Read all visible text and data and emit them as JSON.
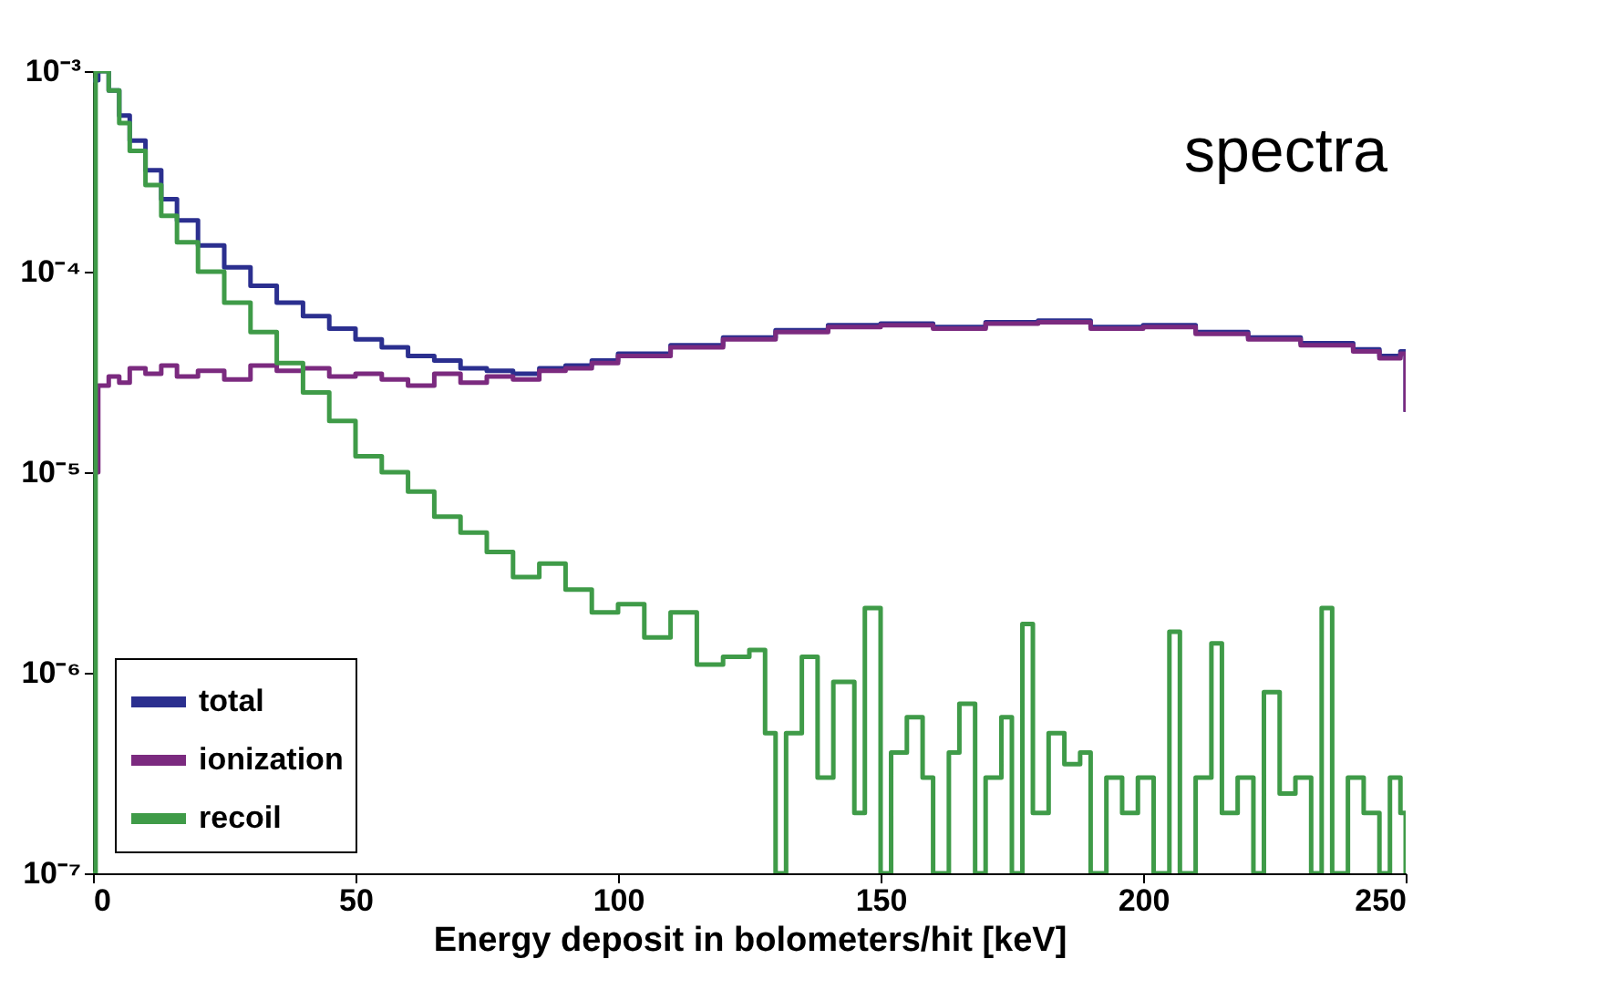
{
  "chart_data": {
    "type": "step",
    "xlabel": "Energy deposit in bolometers/hit [keV]",
    "annotations": [
      "spectra"
    ],
    "log": "y",
    "xlim": [
      0,
      250
    ],
    "xticks": [
      0,
      50,
      100,
      150,
      200,
      250
    ],
    "ylim": [
      1e-07,
      0.001
    ],
    "yticks": [
      {
        "value": 0.001,
        "label": "10⁻³"
      },
      {
        "value": 0.0001,
        "label": "10⁻⁴"
      },
      {
        "value": 1e-05,
        "label": "10⁻⁵"
      },
      {
        "value": 1e-06,
        "label": "10⁻⁶"
      },
      {
        "value": 1e-07,
        "label": "10⁻⁷"
      }
    ],
    "grid": false,
    "legend": "bottom left",
    "marker": "none",
    "line_style": "solid",
    "series": [
      {
        "name": "total",
        "color": "#2b2f8f",
        "x": [
          0,
          1,
          3,
          5,
          7,
          10,
          13,
          16,
          20,
          25,
          30,
          35,
          40,
          45,
          50,
          55,
          60,
          65,
          70,
          75,
          80,
          85,
          90,
          95,
          100,
          110,
          120,
          130,
          140,
          150,
          160,
          170,
          180,
          190,
          200,
          210,
          220,
          230,
          240,
          245,
          249,
          250
        ],
        "values": [
          0.0009,
          0.001,
          0.0008,
          0.0006,
          0.00045,
          0.00032,
          0.00023,
          0.00018,
          0.000135,
          0.000105,
          8.5e-05,
          7e-05,
          6e-05,
          5.2e-05,
          4.6e-05,
          4.2e-05,
          3.8e-05,
          3.6e-05,
          3.3e-05,
          3.2e-05,
          3.1e-05,
          3.3e-05,
          3.4e-05,
          3.6e-05,
          3.9e-05,
          4.3e-05,
          4.7e-05,
          5.1e-05,
          5.4e-05,
          5.5e-05,
          5.3e-05,
          5.6e-05,
          5.7e-05,
          5.3e-05,
          5.4e-05,
          5e-05,
          4.7e-05,
          4.4e-05,
          4.1e-05,
          3.8e-05,
          4e-05,
          2e-05
        ]
      },
      {
        "name": "ionization",
        "color": "#7b2a7f",
        "x": [
          0,
          1,
          3,
          5,
          7,
          10,
          13,
          16,
          20,
          25,
          30,
          35,
          40,
          45,
          50,
          55,
          60,
          65,
          70,
          75,
          80,
          85,
          90,
          95,
          100,
          110,
          120,
          130,
          140,
          150,
          160,
          170,
          180,
          190,
          200,
          210,
          220,
          230,
          240,
          245,
          249,
          250
        ],
        "values": [
          1e-05,
          2.7e-05,
          3e-05,
          2.8e-05,
          3.3e-05,
          3.1e-05,
          3.4e-05,
          3e-05,
          3.2e-05,
          2.9e-05,
          3.4e-05,
          3.2e-05,
          3.3e-05,
          3e-05,
          3.1e-05,
          2.9e-05,
          2.7e-05,
          3.1e-05,
          2.8e-05,
          3e-05,
          2.9e-05,
          3.2e-05,
          3.3e-05,
          3.5e-05,
          3.8e-05,
          4.2e-05,
          4.6e-05,
          5e-05,
          5.3e-05,
          5.4e-05,
          5.2e-05,
          5.5e-05,
          5.6e-05,
          5.2e-05,
          5.3e-05,
          4.9e-05,
          4.6e-05,
          4.3e-05,
          4e-05,
          3.7e-05,
          3.9e-05,
          2e-05
        ]
      },
      {
        "name": "recoil",
        "color": "#3f9b48",
        "x": [
          0,
          0.5,
          3,
          5,
          7,
          10,
          13,
          16,
          20,
          25,
          30,
          35,
          40,
          45,
          50,
          55,
          60,
          65,
          70,
          75,
          80,
          85,
          90,
          95,
          100,
          105,
          110,
          115,
          120,
          125,
          128,
          130,
          132,
          135,
          138,
          141,
          145,
          147,
          150,
          152,
          155,
          158,
          160,
          163,
          165,
          168,
          170,
          173,
          175,
          177,
          179,
          182,
          185,
          188,
          190,
          193,
          196,
          199,
          202,
          205,
          207,
          210,
          213,
          215,
          218,
          221,
          223,
          226,
          229,
          232,
          234,
          236,
          239,
          242,
          245,
          247,
          249,
          250
        ],
        "values": [
          1e-07,
          0.001,
          0.0008,
          0.00055,
          0.0004,
          0.00027,
          0.00019,
          0.00014,
          0.0001,
          7e-05,
          5e-05,
          3.5e-05,
          2.5e-05,
          1.8e-05,
          1.2e-05,
          1e-05,
          8e-06,
          6e-06,
          5e-06,
          4e-06,
          3e-06,
          3.5e-06,
          2.6e-06,
          2e-06,
          2.2e-06,
          1.5e-06,
          2e-06,
          1.1e-06,
          1.2e-06,
          1.3e-06,
          5e-07,
          1e-07,
          5e-07,
          1.2e-06,
          3e-07,
          9e-07,
          2e-07,
          2.1e-06,
          1e-07,
          4e-07,
          6e-07,
          3e-07,
          1e-07,
          4e-07,
          7e-07,
          1e-07,
          3e-07,
          6e-07,
          1e-07,
          1.75e-06,
          2e-07,
          5e-07,
          3.5e-07,
          4e-07,
          1e-07,
          3e-07,
          2e-07,
          3e-07,
          1e-07,
          1.6e-06,
          1e-07,
          3e-07,
          1.4e-06,
          2e-07,
          3e-07,
          1e-07,
          8e-07,
          2.5e-07,
          3e-07,
          1e-07,
          2.1e-06,
          1e-07,
          3e-07,
          2e-07,
          1e-07,
          3e-07,
          2e-07,
          1e-07
        ]
      }
    ]
  }
}
